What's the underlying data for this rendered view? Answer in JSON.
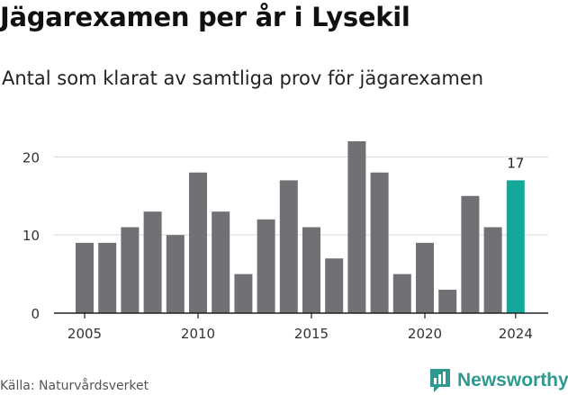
{
  "header": {
    "title": "Jägarexamen per år i Lysekil",
    "subtitle": "Antal som klarat av samtliga prov för jägarexamen"
  },
  "footer": {
    "source": "Källa: Naturvårdsverket",
    "brand": "Newsworthy"
  },
  "colors": {
    "bar": "#717175",
    "highlight": "#14a89b",
    "grid": "#d9d9d9",
    "axis": "#222222",
    "brand": "#2e9a8f"
  },
  "chart_data": {
    "type": "bar",
    "categories": [
      2005,
      2006,
      2007,
      2008,
      2009,
      2010,
      2011,
      2012,
      2013,
      2014,
      2015,
      2016,
      2017,
      2018,
      2019,
      2020,
      2021,
      2022,
      2023,
      2024
    ],
    "values": [
      9,
      9,
      11,
      13,
      10,
      18,
      13,
      5,
      12,
      17,
      11,
      7,
      22,
      18,
      5,
      9,
      3,
      15,
      11,
      17
    ],
    "highlight_category": 2024,
    "highlight_label": "17",
    "x_tick_labels": [
      "2005",
      "2010",
      "2015",
      "2020",
      "2024"
    ],
    "y_ticks": [
      0,
      10,
      20
    ],
    "ylim": [
      0,
      22
    ],
    "grid": true,
    "legend": "none"
  }
}
